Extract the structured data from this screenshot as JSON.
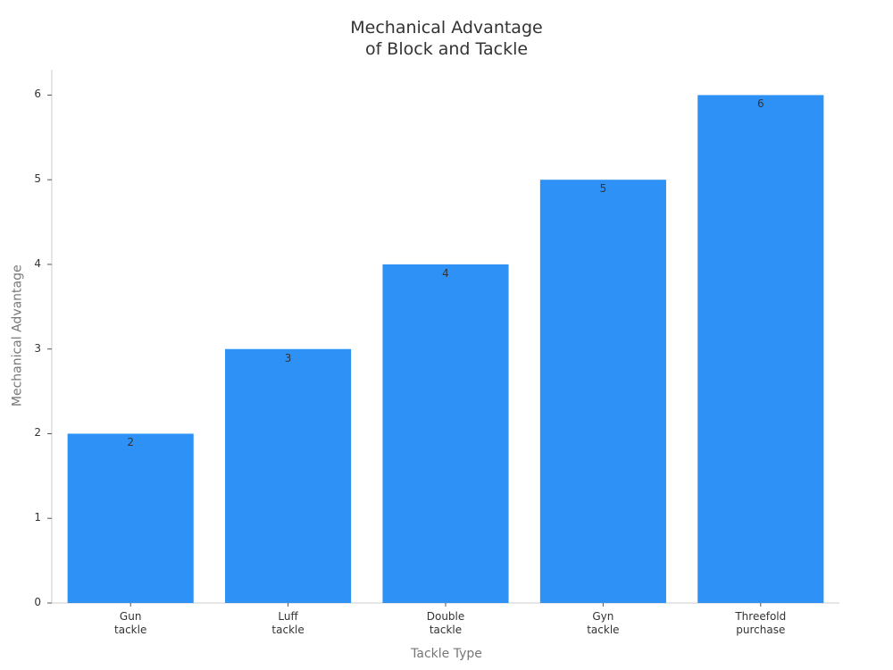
{
  "chart_data": {
    "type": "bar",
    "title": "Mechanical Advantage\nof Block and Tackle",
    "x_label": "Tackle Type",
    "y_label": "Mechanical Advantage",
    "categories": [
      "Gun\ntackle",
      "Luff\ntackle",
      "Double\ntackle",
      "Gyn\ntackle",
      "Threefold\npurchase"
    ],
    "values": [
      2,
      3,
      4,
      5,
      6
    ],
    "color": "#2e91f5",
    "ylim": [
      0,
      6.3
    ],
    "yticks": [
      0,
      1,
      2,
      3,
      4,
      5,
      6
    ],
    "grid": false
  }
}
